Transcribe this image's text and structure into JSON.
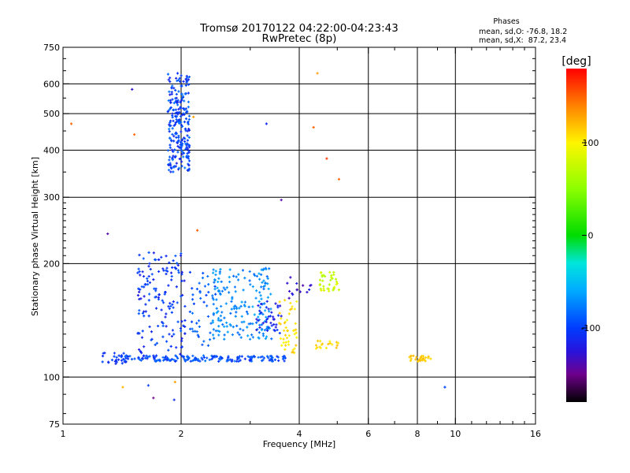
{
  "chart_data": {
    "type": "scatter",
    "title": "Tromsø 20170122 04:22:00-04:23:43",
    "subtitle": "RwPretec (8p)",
    "xlabel": "Frequency [MHz]",
    "ylabel": "Stationary phase Virtual Height [km]",
    "x_scale": "log",
    "y_scale": "log",
    "xlim": [
      1,
      16
    ],
    "ylim": [
      75,
      750
    ],
    "x_ticks": [
      1,
      2,
      4,
      6,
      8,
      10,
      16
    ],
    "y_ticks": [
      75,
      100,
      200,
      300,
      400,
      500,
      600,
      750
    ],
    "grid": true,
    "stats": {
      "heading": "Phases",
      "o_line": "mean, sd,O: -76.8, 18.2",
      "x_line": "mean, sd,X:  87.2, 23.4"
    },
    "colorbar": {
      "label": "[deg]",
      "range": [
        -180,
        180
      ],
      "ticks": [
        100,
        0,
        -100
      ],
      "colormap": "rainbow"
    },
    "clusters": [
      {
        "f": [
          1.85,
          2.1
        ],
        "h": [
          350,
          640
        ],
        "n": 240,
        "phase": [
          -118,
          -78
        ]
      },
      {
        "f": [
          1.25,
          1.45
        ],
        "h": [
          108,
          116
        ],
        "n": 25,
        "phase": [
          -115,
          -95
        ]
      },
      {
        "f": [
          1.4,
          3.7
        ],
        "h": [
          110,
          114
        ],
        "n": 170,
        "phase": [
          -110,
          -80
        ]
      },
      {
        "f": [
          1.55,
          2.05
        ],
        "h": [
          115,
          215
        ],
        "n": 150,
        "phase": [
          -120,
          -88
        ]
      },
      {
        "f": [
          2.1,
          2.5
        ],
        "h": [
          120,
          190
        ],
        "n": 45,
        "phase": [
          -100,
          -80
        ]
      },
      {
        "f": [
          2.4,
          3.4
        ],
        "h": [
          125,
          195
        ],
        "n": 180,
        "phase": [
          -85,
          -60
        ]
      },
      {
        "f": [
          3.1,
          3.6
        ],
        "h": [
          130,
          160
        ],
        "n": 40,
        "phase": [
          -125,
          -100
        ]
      },
      {
        "f": [
          3.55,
          3.95
        ],
        "h": [
          115,
          160
        ],
        "n": 45,
        "phase": [
          95,
          120
        ]
      },
      {
        "f": [
          4.5,
          5.1
        ],
        "h": [
          168,
          190
        ],
        "n": 35,
        "phase": [
          65,
          90
        ]
      },
      {
        "f": [
          4.4,
          5.05
        ],
        "h": [
          115,
          125
        ],
        "n": 18,
        "phase": [
          100,
          120
        ]
      },
      {
        "f": [
          7.6,
          8.7
        ],
        "h": [
          110,
          114
        ],
        "n": 28,
        "phase": [
          108,
          122
        ]
      },
      {
        "f": [
          3.7,
          4.3
        ],
        "h": [
          160,
          185
        ],
        "n": 15,
        "phase": [
          -140,
          -110
        ]
      }
    ],
    "points": [
      {
        "f": 1.05,
        "h": 470,
        "phase": 150
      },
      {
        "f": 1.5,
        "h": 580,
        "phase": -130
      },
      {
        "f": 1.52,
        "h": 440,
        "phase": 150
      },
      {
        "f": 1.3,
        "h": 240,
        "phase": -140
      },
      {
        "f": 1.42,
        "h": 94,
        "phase": 120
      },
      {
        "f": 1.65,
        "h": 95,
        "phase": -100
      },
      {
        "f": 1.7,
        "h": 88,
        "phase": -150
      },
      {
        "f": 1.92,
        "h": 87,
        "phase": -110
      },
      {
        "f": 1.93,
        "h": 97,
        "phase": 130
      },
      {
        "f": 2.2,
        "h": 245,
        "phase": 150
      },
      {
        "f": 2.15,
        "h": 490,
        "phase": 130
      },
      {
        "f": 3.3,
        "h": 470,
        "phase": -110
      },
      {
        "f": 3.6,
        "h": 295,
        "phase": -140
      },
      {
        "f": 4.35,
        "h": 460,
        "phase": 150
      },
      {
        "f": 4.45,
        "h": 640,
        "phase": 130
      },
      {
        "f": 4.7,
        "h": 380,
        "phase": 160
      },
      {
        "f": 5.05,
        "h": 335,
        "phase": 150
      },
      {
        "f": 9.4,
        "h": 94,
        "phase": -100
      }
    ]
  }
}
